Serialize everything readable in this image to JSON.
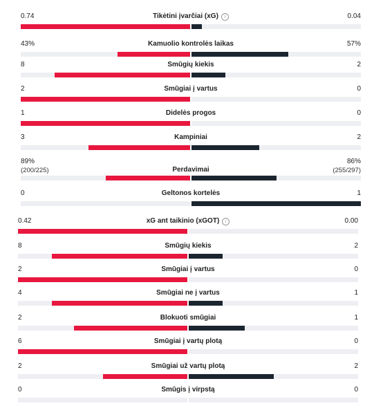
{
  "colors": {
    "home": "#e8173f",
    "away": "#1b2530",
    "track": "#eeeff2"
  },
  "icons": {
    "info": "info-icon"
  },
  "sections": [
    {
      "id": "general",
      "rows": [
        {
          "label": "Tikėtini įvarčiai (xG)",
          "home": "0.74",
          "away": "0.04",
          "hf": 1.0,
          "af": 0.06,
          "info": true
        },
        {
          "label": "Kamuolio kontrolės laikas",
          "home": "43%",
          "away": "57%",
          "hf": 0.43,
          "af": 0.57
        },
        {
          "label": "Smūgių kiekis",
          "home": "8",
          "away": "2",
          "hf": 0.8,
          "af": 0.2
        },
        {
          "label": "Smūgiai į vartus",
          "home": "2",
          "away": "0",
          "hf": 1.0,
          "af": 0.0
        },
        {
          "label": "Didelės progos",
          "home": "1",
          "away": "0",
          "hf": 1.0,
          "af": 0.0
        },
        {
          "label": "Kampiniai",
          "home": "3",
          "away": "2",
          "hf": 0.6,
          "af": 0.4
        },
        {
          "label": "Perdavimai",
          "home": "89%",
          "away": "86%",
          "home_sub": "(200/225)",
          "away_sub": "(255/297)",
          "hf": 0.5,
          "af": 0.5
        },
        {
          "label": "Geltonos kortelės",
          "home": "0",
          "away": "1",
          "hf": 0.0,
          "af": 1.0
        }
      ]
    },
    {
      "id": "shots",
      "rows": [
        {
          "label": "xG ant taikinio (xGOT)",
          "home": "0.42",
          "away": "0.00",
          "hf": 1.0,
          "af": 0.0,
          "info": true
        },
        {
          "label": "Smūgių kiekis",
          "home": "8",
          "away": "2",
          "hf": 0.8,
          "af": 0.2
        },
        {
          "label": "Smūgiai į vartus",
          "home": "2",
          "away": "0",
          "hf": 1.0,
          "af": 0.0
        },
        {
          "label": "Smūgiai ne į vartus",
          "home": "4",
          "away": "1",
          "hf": 0.8,
          "af": 0.2
        },
        {
          "label": "Blokuoti smūgiai",
          "home": "2",
          "away": "1",
          "hf": 0.67,
          "af": 0.33
        },
        {
          "label": "Smūgiai į vartų plotą",
          "home": "6",
          "away": "0",
          "hf": 1.0,
          "af": 0.0
        },
        {
          "label": "Smūgiai už vartų plotą",
          "home": "2",
          "away": "2",
          "hf": 0.5,
          "af": 0.5
        },
        {
          "label": "Smūgis į virpstą",
          "home": "0",
          "away": "0",
          "hf": 0.0,
          "af": 0.0
        }
      ]
    }
  ]
}
